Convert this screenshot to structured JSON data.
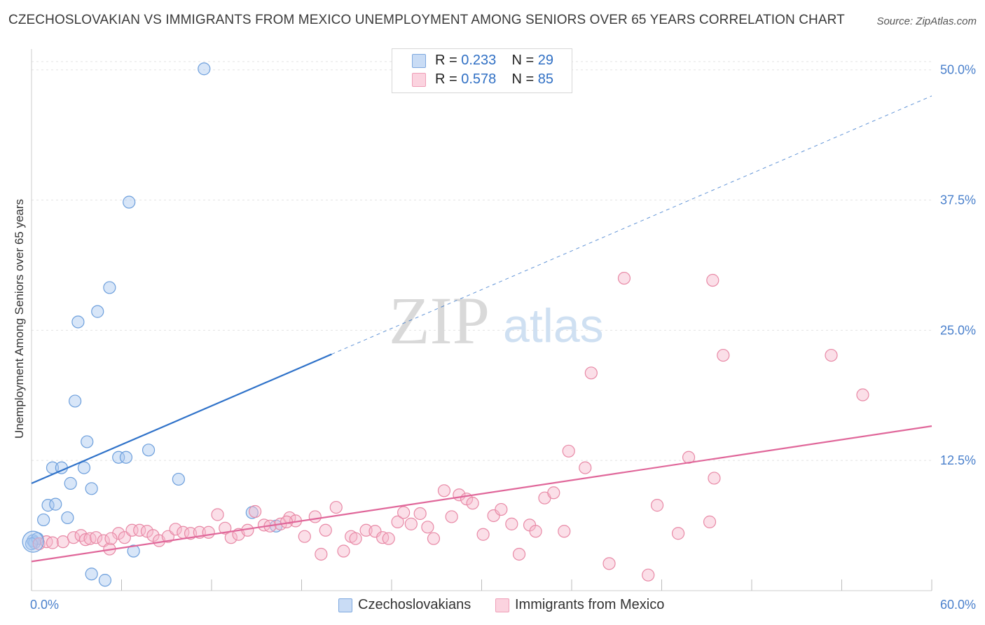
{
  "title": "CZECHOSLOVAKIAN VS IMMIGRANTS FROM MEXICO UNEMPLOYMENT AMONG SENIORS OVER 65 YEARS CORRELATION CHART",
  "source": "Source: ZipAtlas.com",
  "watermark": {
    "zip": "ZIP",
    "atlas": "atlas"
  },
  "legend_top": [
    {
      "r_label": "R =",
      "r_value": "0.233",
      "n_label": "N =",
      "n_value": "29",
      "color": "#a9c8f0"
    },
    {
      "r_label": "R =",
      "r_value": "0.578",
      "n_label": "N =",
      "n_value": "85",
      "color": "#f7b8cb"
    }
  ],
  "legend_bottom": [
    {
      "label": "Czechoslovakians",
      "color": "#a9c8f0"
    },
    {
      "label": "Immigrants from Mexico",
      "color": "#f7b8cb"
    }
  ],
  "chart_data": {
    "type": "scatter",
    "title": "CZECHOSLOVAKIAN VS IMMIGRANTS FROM MEXICO UNEMPLOYMENT AMONG SENIORS OVER 65 YEARS CORRELATION CHART",
    "xlabel": "",
    "ylabel": "Unemployment Among Seniors over 65 years",
    "xlim": [
      0,
      60
    ],
    "ylim": [
      0,
      52
    ],
    "x_tick_labels": [
      "0.0%",
      "60.0%"
    ],
    "y_ticks": [
      12.5,
      25.0,
      37.5,
      50.0
    ],
    "y_tick_labels": [
      "12.5%",
      "25.0%",
      "37.5%",
      "50.0%"
    ],
    "grid": true,
    "series": [
      {
        "name": "Czechoslovakians",
        "color": "#a9c8f0",
        "stroke": "#6d9fdc",
        "line_color": "#2f72c9",
        "trend": {
          "x0": 0,
          "y0": 10.3,
          "x1": 20,
          "y1": 22.7,
          "dash_to_x": 60,
          "dash_to_y": 47.5
        },
        "points": [
          [
            0.1,
            4.8
          ],
          [
            0.2,
            4.6
          ],
          [
            0.4,
            5.0
          ],
          [
            0.8,
            6.8
          ],
          [
            1.1,
            8.2
          ],
          [
            1.6,
            8.3
          ],
          [
            1.4,
            11.8
          ],
          [
            2.0,
            11.8
          ],
          [
            2.4,
            7.0
          ],
          [
            2.6,
            10.3
          ],
          [
            2.9,
            18.2
          ],
          [
            3.1,
            25.8
          ],
          [
            3.5,
            11.8
          ],
          [
            3.7,
            14.3
          ],
          [
            4.0,
            9.8
          ],
          [
            4.4,
            26.8
          ],
          [
            5.2,
            29.1
          ],
          [
            5.8,
            12.8
          ],
          [
            6.3,
            12.8
          ],
          [
            6.5,
            37.3
          ],
          [
            6.8,
            3.8
          ],
          [
            7.8,
            13.5
          ],
          [
            9.8,
            10.7
          ],
          [
            11.5,
            50.1
          ],
          [
            14.7,
            7.5
          ],
          [
            16.3,
            6.2
          ],
          [
            4.0,
            1.6
          ],
          [
            4.9,
            1.0
          ],
          [
            0.0,
            4.5
          ]
        ]
      },
      {
        "name": "Immigrants from Mexico",
        "color": "#f7b8cb",
        "stroke": "#e889a6",
        "line_color": "#e0679a",
        "trend": {
          "x0": 0,
          "y0": 2.8,
          "x1": 60,
          "y1": 15.8
        },
        "points": [
          [
            0.5,
            4.5
          ],
          [
            1.0,
            4.7
          ],
          [
            1.4,
            4.6
          ],
          [
            2.1,
            4.7
          ],
          [
            2.8,
            5.1
          ],
          [
            3.3,
            5.3
          ],
          [
            3.6,
            4.9
          ],
          [
            3.9,
            5.0
          ],
          [
            4.3,
            5.1
          ],
          [
            4.8,
            4.8
          ],
          [
            5.2,
            4.0
          ],
          [
            5.8,
            5.5
          ],
          [
            6.2,
            5.1
          ],
          [
            6.7,
            5.8
          ],
          [
            7.2,
            5.8
          ],
          [
            7.7,
            5.7
          ],
          [
            8.1,
            5.3
          ],
          [
            8.5,
            4.8
          ],
          [
            9.1,
            5.2
          ],
          [
            9.6,
            5.9
          ],
          [
            10.1,
            5.6
          ],
          [
            10.6,
            5.5
          ],
          [
            11.2,
            5.6
          ],
          [
            11.8,
            5.6
          ],
          [
            12.4,
            7.3
          ],
          [
            12.9,
            6.0
          ],
          [
            13.3,
            5.1
          ],
          [
            13.8,
            5.4
          ],
          [
            14.4,
            5.8
          ],
          [
            14.9,
            7.6
          ],
          [
            15.5,
            6.3
          ],
          [
            15.9,
            6.2
          ],
          [
            16.6,
            6.4
          ],
          [
            17.2,
            7.0
          ],
          [
            17.6,
            6.7
          ],
          [
            18.2,
            5.2
          ],
          [
            18.9,
            7.1
          ],
          [
            19.3,
            3.5
          ],
          [
            19.6,
            5.8
          ],
          [
            20.3,
            8.0
          ],
          [
            20.8,
            3.8
          ],
          [
            21.3,
            5.2
          ],
          [
            21.6,
            5.0
          ],
          [
            22.3,
            5.8
          ],
          [
            22.9,
            5.7
          ],
          [
            23.4,
            5.1
          ],
          [
            23.8,
            5.0
          ],
          [
            24.4,
            6.6
          ],
          [
            24.8,
            7.5
          ],
          [
            25.3,
            6.4
          ],
          [
            25.9,
            7.4
          ],
          [
            26.4,
            6.1
          ],
          [
            26.8,
            5.0
          ],
          [
            27.5,
            9.6
          ],
          [
            28.0,
            7.1
          ],
          [
            28.5,
            9.2
          ],
          [
            29.0,
            8.8
          ],
          [
            29.4,
            8.4
          ],
          [
            30.1,
            5.4
          ],
          [
            30.8,
            7.2
          ],
          [
            31.3,
            7.8
          ],
          [
            32.0,
            6.4
          ],
          [
            32.5,
            3.5
          ],
          [
            33.2,
            6.3
          ],
          [
            33.6,
            5.7
          ],
          [
            34.2,
            8.9
          ],
          [
            34.8,
            9.4
          ],
          [
            35.5,
            5.7
          ],
          [
            35.8,
            13.4
          ],
          [
            36.9,
            11.8
          ],
          [
            37.3,
            20.9
          ],
          [
            38.5,
            2.6
          ],
          [
            39.5,
            30.0
          ],
          [
            41.1,
            1.5
          ],
          [
            41.7,
            8.2
          ],
          [
            43.1,
            5.5
          ],
          [
            43.8,
            12.8
          ],
          [
            45.2,
            6.6
          ],
          [
            45.4,
            29.8
          ],
          [
            45.5,
            10.8
          ],
          [
            46.1,
            22.6
          ],
          [
            53.3,
            22.6
          ],
          [
            55.4,
            18.8
          ],
          [
            5.3,
            5.0
          ],
          [
            17.0,
            6.6
          ]
        ]
      }
    ]
  }
}
